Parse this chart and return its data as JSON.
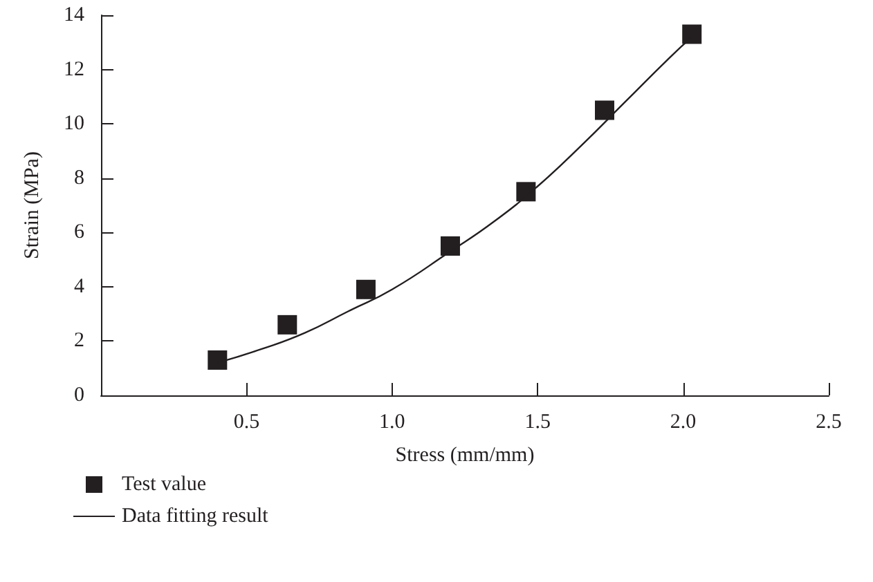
{
  "chart_data": {
    "type": "scatter",
    "xlabel": "Stress (mm/mm)",
    "ylabel": "Strain (MPa)",
    "xlim": [
      0,
      2.5
    ],
    "xticks": [
      0.5,
      {
        "value": 1,
        "label": "1.0"
      },
      1.5,
      {
        "value": 2,
        "label": "2.0"
      },
      2.5
    ],
    "ylim": [
      0,
      14
    ],
    "yticks": [
      0,
      2,
      4,
      6,
      8,
      10,
      12,
      14
    ],
    "grid": false,
    "legend": "bottom left",
    "series": [
      {
        "name": "Test value",
        "marker": "square",
        "color": "#231f20",
        "x": [
          0.4,
          0.64,
          0.91,
          1.2,
          1.46,
          1.73,
          2.03
        ],
        "values": [
          1.3,
          2.6,
          3.9,
          5.5,
          7.5,
          10.5,
          13.3
        ]
      },
      {
        "name": "Data fitting result",
        "type": "line",
        "marker": "none",
        "line_style": "solid",
        "color": "#231f20",
        "x": [
          0.4,
          0.55,
          0.7,
          0.85,
          1.0,
          1.2,
          1.35,
          1.5,
          1.65,
          1.8,
          1.95,
          2.03
        ],
        "values": [
          1.2,
          1.7,
          2.3,
          3.1,
          3.9,
          5.3,
          6.4,
          7.7,
          9.2,
          10.8,
          12.4,
          13.2
        ]
      }
    ]
  }
}
